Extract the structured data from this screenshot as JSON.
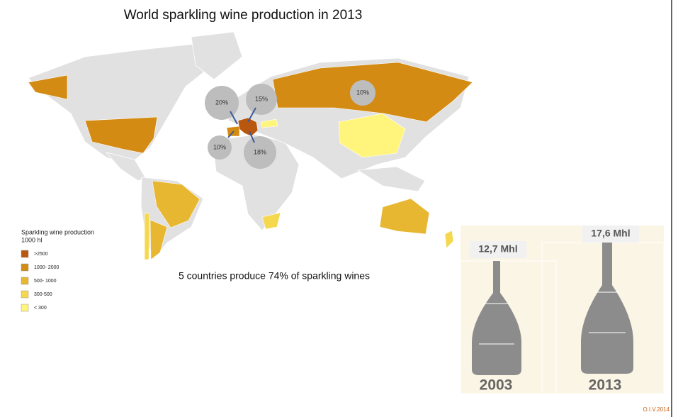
{
  "header": {
    "title": "World sparkling wine production in 2013"
  },
  "legend": {
    "title": "Sparkling wine production",
    "unit": "1000 hl",
    "items": [
      {
        "label": ">2500",
        "color": "#b9570f"
      },
      {
        "label": "1000- 2000",
        "color": "#d38b14"
      },
      {
        "label": "500- 1000",
        "color": "#e8b731"
      },
      {
        "label": "300-500",
        "color": "#f5d84e"
      },
      {
        "label": "< 300",
        "color": "#fff57c"
      }
    ]
  },
  "bubbles": [
    "20%",
    "15%",
    "10%",
    "10%",
    "18%"
  ],
  "caption": "5 countries produce 74% of sparkling wines",
  "bottles": [
    {
      "amount": "12,7 Mhl",
      "year": "2003"
    },
    {
      "amount": "17,6 Mhl",
      "year": "2013"
    }
  ],
  "credit": "O.I.V.2014"
}
